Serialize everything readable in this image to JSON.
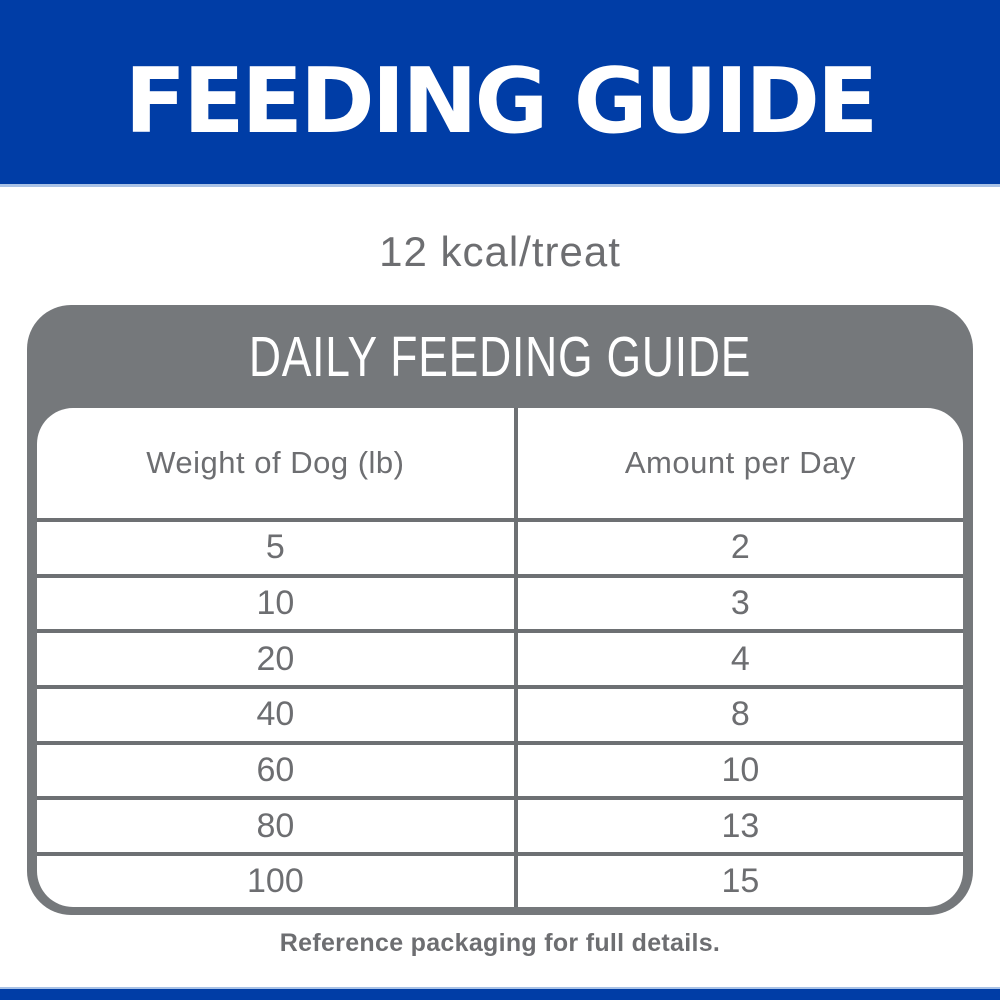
{
  "banner": {
    "title": "FEEDING GUIDE"
  },
  "subtitle": {
    "text": "12 kcal/treat"
  },
  "card": {
    "title": "DAILY FEEDING GUIDE"
  },
  "table": {
    "columns": [
      "Weight of Dog (lb)",
      "Amount per Day"
    ],
    "rows": [
      [
        "5",
        "2"
      ],
      [
        "10",
        "3"
      ],
      [
        "20",
        "4"
      ],
      [
        "40",
        "8"
      ],
      [
        "60",
        "10"
      ],
      [
        "80",
        "13"
      ],
      [
        "100",
        "15"
      ]
    ]
  },
  "footnote": {
    "text": "Reference packaging for full details."
  },
  "colors": {
    "brand_blue": "#003da6",
    "divider_light_blue": "#a9c2e6",
    "band_gray": "#75787b",
    "table_border_gray": "#6d7073",
    "text_gray": "#6d6e71"
  }
}
